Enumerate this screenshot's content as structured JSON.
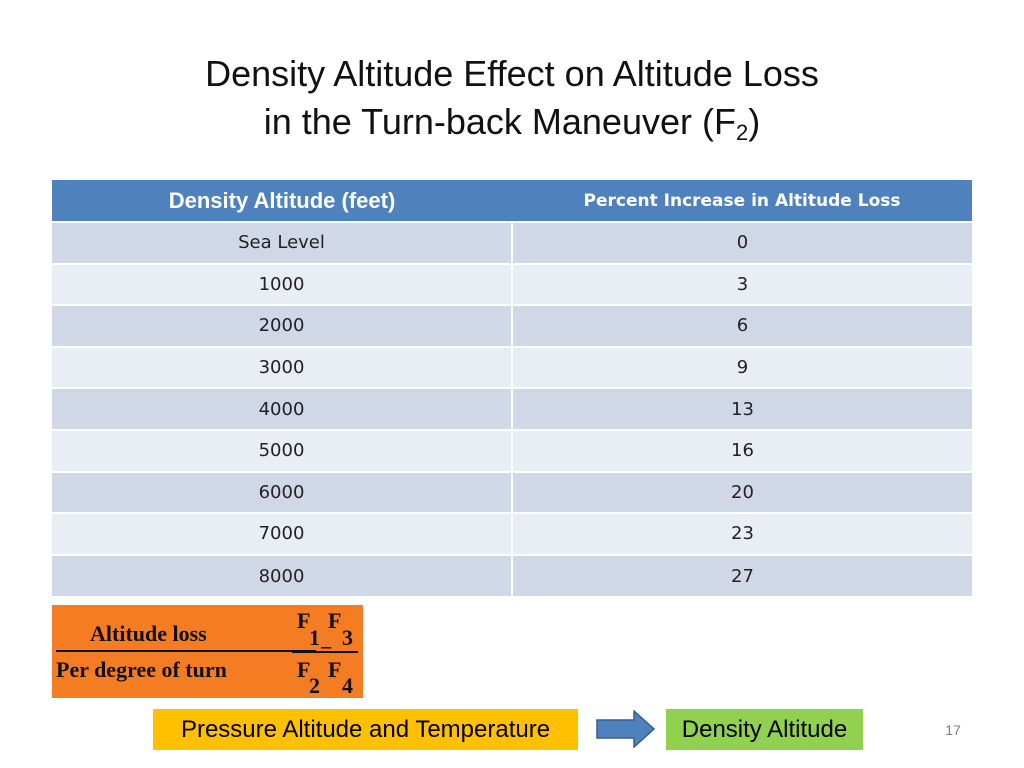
{
  "slide": {
    "title_line1": "Density Altitude Effect on Altitude Loss",
    "title_line2": "in the Turn-back Maneuver (F",
    "title_sub": "2",
    "title_close": ")",
    "page_number": "17"
  },
  "table": {
    "headers": [
      "Density Altitude (feet)",
      "Percent Increase in Altitude Loss"
    ],
    "rows": [
      [
        "Sea Level",
        "0"
      ],
      [
        "1000",
        "3"
      ],
      [
        "2000",
        "6"
      ],
      [
        "3000",
        "9"
      ],
      [
        "4000",
        "13"
      ],
      [
        "5000",
        "16"
      ],
      [
        "6000",
        "20"
      ],
      [
        "7000",
        "23"
      ],
      [
        "8000",
        "27"
      ]
    ],
    "colors": {
      "header": "#4f81bd",
      "row_odd": "#d0d8e8",
      "row_even": "#e9edf4"
    }
  },
  "formula": {
    "numerator_text": "Altitude loss",
    "denominator_text": "Per degree of turn",
    "equals": "=",
    "top_f1": "F",
    "top_sub1": "1",
    "top_f2": "F",
    "top_sub2": "3",
    "bottom_f1": "F",
    "bottom_sub1": "2",
    "bottom_f2": "F",
    "bottom_sub2": "4",
    "color": "#f47c23"
  },
  "flow": {
    "from_label": "Pressure Altitude and Temperature",
    "to_label": "Density Altitude",
    "from_color": "#ffc000",
    "to_color": "#92d050",
    "arrow_color": "#4f81bd",
    "arrow_icon": "right-arrow-icon"
  }
}
